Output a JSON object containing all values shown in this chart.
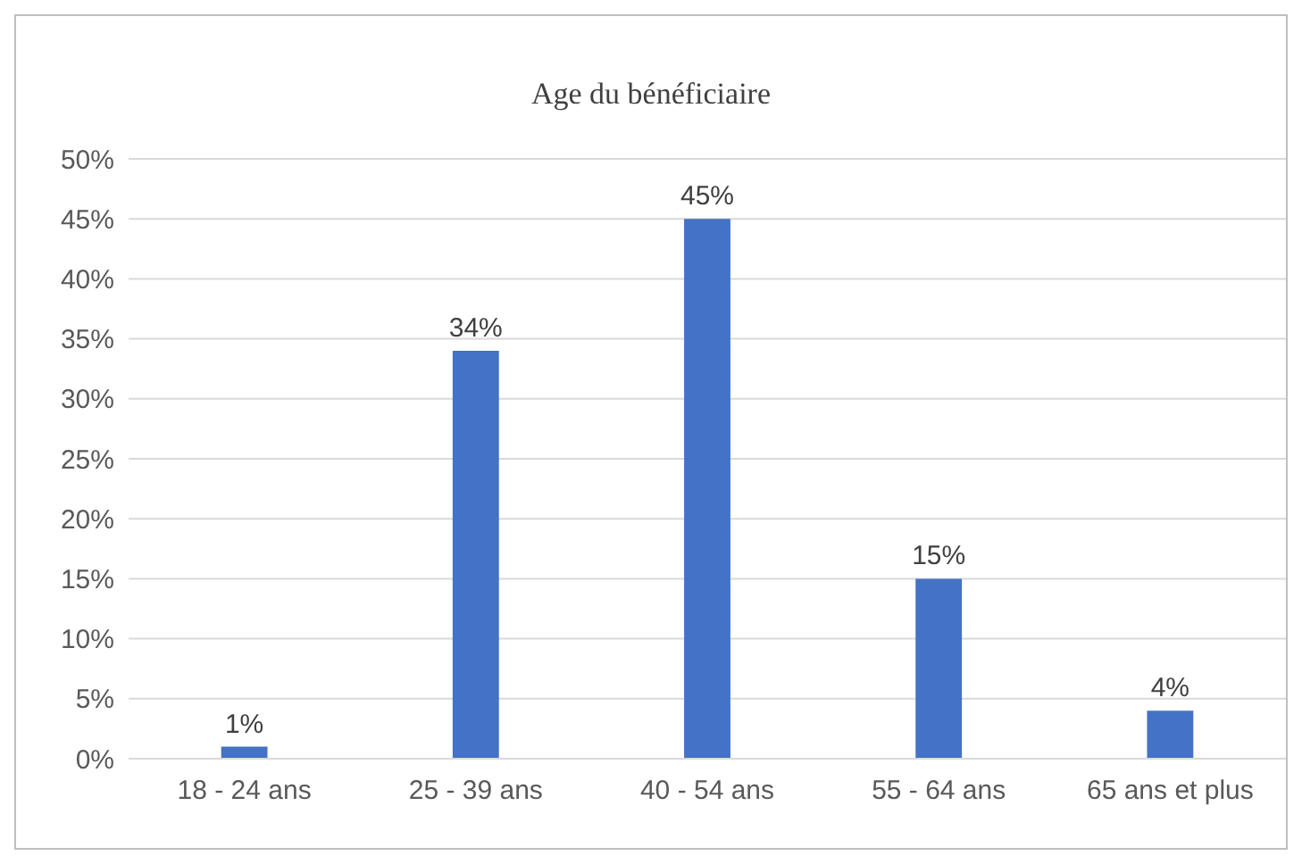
{
  "chart_data": {
    "type": "bar",
    "title": "Age du bénéficiaire",
    "categories": [
      "18 - 24 ans",
      "25 - 39 ans",
      "40 - 54 ans",
      "55 - 64 ans",
      "65 ans et plus"
    ],
    "values": [
      1,
      34,
      45,
      15,
      4
    ],
    "value_labels": [
      "1%",
      "34%",
      "45%",
      "15%",
      "4%"
    ],
    "color": "#4472c4",
    "ylim": [
      0,
      50
    ],
    "yticks": [
      {
        "value": 0,
        "label": "0%"
      },
      {
        "value": 5,
        "label": "5%"
      },
      {
        "value": 10,
        "label": "10%"
      },
      {
        "value": 15,
        "label": "15%"
      },
      {
        "value": 20,
        "label": "20%"
      },
      {
        "value": 25,
        "label": "25%"
      },
      {
        "value": 30,
        "label": "30%"
      },
      {
        "value": 35,
        "label": "35%"
      },
      {
        "value": 40,
        "label": "40%"
      },
      {
        "value": 45,
        "label": "45%"
      },
      {
        "value": 50,
        "label": "50%"
      }
    ],
    "grid": "y",
    "legend": false
  }
}
